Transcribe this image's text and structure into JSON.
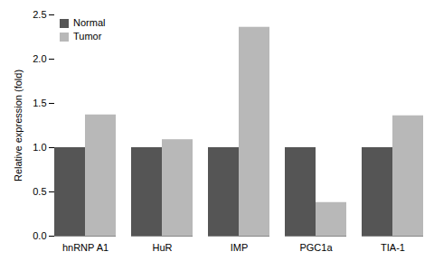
{
  "chart_data": {
    "type": "bar",
    "categories": [
      "hnRNP A1",
      "HuR",
      "IMP",
      "PGC1a",
      "TIA-1"
    ],
    "series": [
      {
        "name": "Normal",
        "color": "#555555",
        "values": [
          1.0,
          1.0,
          1.0,
          1.0,
          1.0
        ]
      },
      {
        "name": "Tumor",
        "color": "#b8b8b8",
        "values": [
          1.37,
          1.09,
          2.36,
          0.38,
          1.36
        ]
      }
    ],
    "ylabel": "Relative expression (fold)",
    "ylim": [
      0,
      2.5
    ],
    "yticks": [
      {
        "value": 0,
        "label": "0.0"
      },
      0.5,
      {
        "value": 1,
        "label": "1.0"
      },
      1.5,
      {
        "value": 2,
        "label": "2.0"
      },
      2.5
    ],
    "grid": false,
    "legend": "upper left"
  }
}
